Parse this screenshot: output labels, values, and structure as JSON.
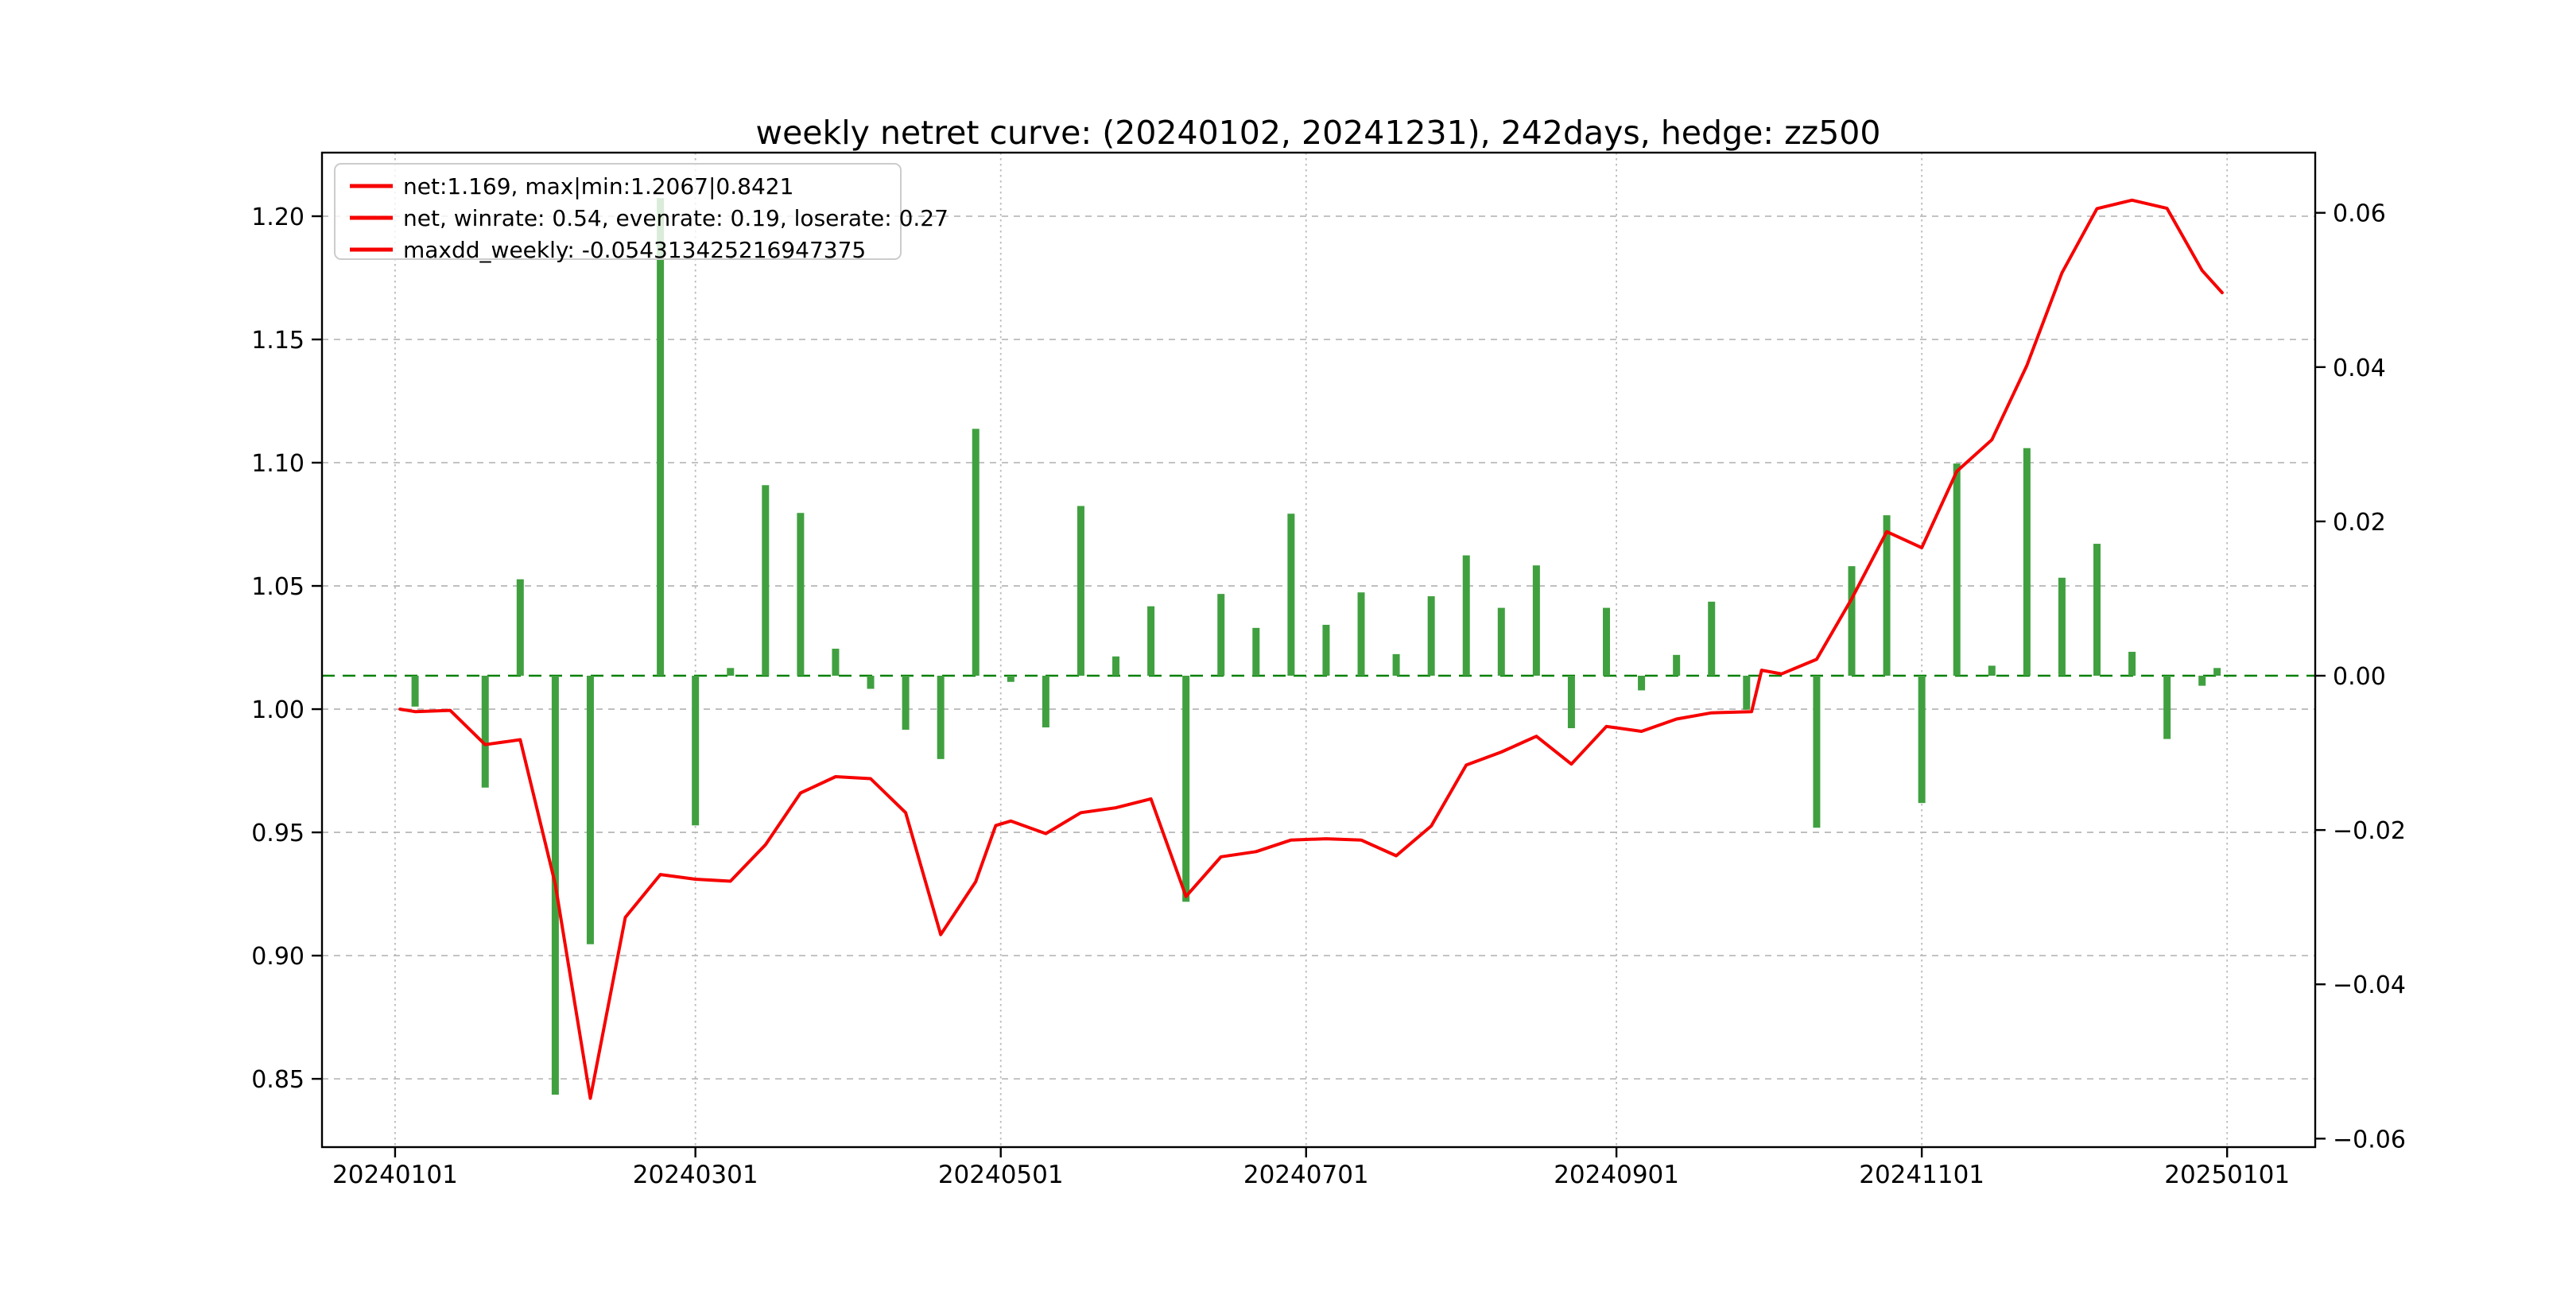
{
  "title": "weekly netret curve: (20240102, 20241231), 242days, hedge: zz500",
  "legend": {
    "items": [
      {
        "label": "net:1.169, max|min:1.2067|0.8421"
      },
      {
        "label": "net, winrate: 0.54, evenrate: 0.19, loserate: 0.27"
      },
      {
        "label": "maxdd_weekly: -0.054313425216947375"
      }
    ]
  },
  "colors": {
    "net_line": "#f60000",
    "bar_fill": "#40a040",
    "zero_line": "#008000",
    "gridline": "#bbbbbb",
    "spine": "#000000",
    "legend_border": "#cccccc",
    "legend_bg": "rgba(255,255,255,0.8)"
  },
  "chart_data": {
    "type": "bar",
    "title": "weekly netret curve: (20240102, 20241231), 242days, hedge: zz500",
    "grid": true,
    "legend_position": "upper left",
    "left_axis": {
      "label": "",
      "tick_labels": [
        "1.20",
        "1.15",
        "1.10",
        "1.05",
        "1.00",
        "0.95",
        "0.90",
        "0.85"
      ],
      "tick_values": [
        1.2,
        1.15,
        1.1,
        1.05,
        1.0,
        0.95,
        0.9,
        0.85
      ],
      "range": [
        0.8223,
        1.2258
      ]
    },
    "right_axis": {
      "label": "",
      "tick_labels": [
        "0.06",
        "0.04",
        "0.02",
        "0.00",
        "−0.02",
        "−0.04",
        "−0.06"
      ],
      "tick_values": [
        0.06,
        0.04,
        0.02,
        0.0,
        -0.02,
        -0.04,
        -0.06
      ],
      "range": [
        -0.0611,
        0.0678
      ]
    },
    "x_axis": {
      "tick_labels": [
        "20240101",
        "20240301",
        "20240501",
        "20240701",
        "20240901",
        "20241101",
        "20250101"
      ],
      "tick_days": [
        0,
        60,
        121,
        182,
        244,
        305,
        366
      ],
      "day_range": [
        -14.6,
        383.6
      ]
    },
    "zero_line_right_value": 0.0,
    "series": [
      {
        "name": "weekly_return_bars",
        "type": "bar",
        "axis": "right",
        "points": [
          {
            "day": 4,
            "value": -0.004
          },
          {
            "day": 11,
            "value": 0.0
          },
          {
            "day": 18,
            "value": -0.0145
          },
          {
            "day": 25,
            "value": 0.0125
          },
          {
            "day": 32,
            "value": -0.0543
          },
          {
            "day": 39,
            "value": -0.0348
          },
          {
            "day": 46,
            "value": 0.0
          },
          {
            "day": 53,
            "value": 0.0619
          },
          {
            "day": 60,
            "value": -0.0194
          },
          {
            "day": 67,
            "value": 0.001
          },
          {
            "day": 74,
            "value": 0.0247
          },
          {
            "day": 81,
            "value": 0.0211
          },
          {
            "day": 88,
            "value": 0.0035
          },
          {
            "day": 95,
            "value": -0.0017
          },
          {
            "day": 102,
            "value": -0.007
          },
          {
            "day": 109,
            "value": -0.0108
          },
          {
            "day": 116,
            "value": 0.032
          },
          {
            "day": 123,
            "value": -0.0008
          },
          {
            "day": 130,
            "value": -0.0067
          },
          {
            "day": 137,
            "value": 0.022
          },
          {
            "day": 144,
            "value": 0.0025
          },
          {
            "day": 151,
            "value": 0.009
          },
          {
            "day": 158,
            "value": -0.0293
          },
          {
            "day": 165,
            "value": 0.0106
          },
          {
            "day": 172,
            "value": 0.0062
          },
          {
            "day": 179,
            "value": 0.021
          },
          {
            "day": 186,
            "value": 0.0066
          },
          {
            "day": 193,
            "value": 0.0108
          },
          {
            "day": 200,
            "value": 0.0028
          },
          {
            "day": 207,
            "value": 0.0103
          },
          {
            "day": 214,
            "value": 0.0156
          },
          {
            "day": 221,
            "value": 0.0088
          },
          {
            "day": 228,
            "value": 0.0143
          },
          {
            "day": 235,
            "value": -0.0068
          },
          {
            "day": 242,
            "value": 0.0088
          },
          {
            "day": 249,
            "value": -0.0019
          },
          {
            "day": 256,
            "value": 0.0027
          },
          {
            "day": 263,
            "value": 0.0096
          },
          {
            "day": 270,
            "value": -0.0044
          },
          {
            "day": 277,
            "value": 0.0
          },
          {
            "day": 284,
            "value": -0.0197
          },
          {
            "day": 291,
            "value": 0.0142
          },
          {
            "day": 298,
            "value": 0.0208
          },
          {
            "day": 305,
            "value": -0.0165
          },
          {
            "day": 312,
            "value": 0.0275
          },
          {
            "day": 319,
            "value": 0.0013
          },
          {
            "day": 326,
            "value": 0.0295
          },
          {
            "day": 333,
            "value": 0.0127
          },
          {
            "day": 340,
            "value": 0.0171
          },
          {
            "day": 347,
            "value": 0.0031
          },
          {
            "day": 354,
            "value": -0.0082
          },
          {
            "day": 361,
            "value": -0.0013
          },
          {
            "day": 364,
            "value": 0.001
          }
        ]
      },
      {
        "name": "net_curve",
        "type": "line",
        "axis": "left",
        "points": [
          [
            1,
            1.0
          ],
          [
            4,
            0.999
          ],
          [
            11,
            0.9995
          ],
          [
            18,
            0.9856
          ],
          [
            25,
            0.9876
          ],
          [
            32,
            0.929
          ],
          [
            39,
            0.8421
          ],
          [
            46,
            0.9155
          ],
          [
            53,
            0.9329
          ],
          [
            60,
            0.931
          ],
          [
            67,
            0.9302
          ],
          [
            74,
            0.945
          ],
          [
            81,
            0.966
          ],
          [
            88,
            0.9726
          ],
          [
            95,
            0.9718
          ],
          [
            102,
            0.958
          ],
          [
            109,
            0.9085
          ],
          [
            116,
            0.93
          ],
          [
            120,
            0.9528
          ],
          [
            123,
            0.9546
          ],
          [
            130,
            0.9495
          ],
          [
            137,
            0.958
          ],
          [
            144,
            0.96
          ],
          [
            151,
            0.9636
          ],
          [
            158,
            0.924
          ],
          [
            165,
            0.9401
          ],
          [
            172,
            0.9422
          ],
          [
            179,
            0.9469
          ],
          [
            186,
            0.9474
          ],
          [
            193,
            0.9469
          ],
          [
            200,
            0.9405
          ],
          [
            207,
            0.9526
          ],
          [
            214,
            0.9773
          ],
          [
            221,
            0.9826
          ],
          [
            228,
            0.989
          ],
          [
            235,
            0.9777
          ],
          [
            242,
            0.993
          ],
          [
            249,
            0.991
          ],
          [
            256,
            0.996
          ],
          [
            263,
            0.9985
          ],
          [
            271,
            0.999
          ],
          [
            273,
            1.0158
          ],
          [
            277,
            1.0143
          ],
          [
            284,
            1.0202
          ],
          [
            291,
            1.0448
          ],
          [
            298,
            1.072
          ],
          [
            305,
            1.0655
          ],
          [
            312,
            1.0965
          ],
          [
            319,
            1.1093
          ],
          [
            326,
            1.1395
          ],
          [
            333,
            1.177
          ],
          [
            340,
            1.2031
          ],
          [
            347,
            1.2065
          ],
          [
            354,
            1.2032
          ],
          [
            361,
            1.178
          ],
          [
            365,
            1.169
          ]
        ]
      }
    ]
  }
}
